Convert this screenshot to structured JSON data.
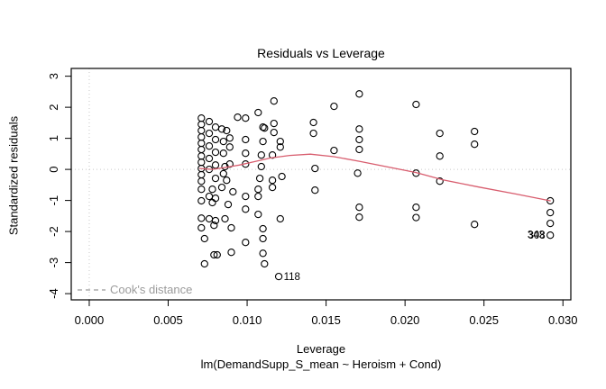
{
  "title": "Residuals vs Leverage",
  "subtitle": "lm(DemandSupp_S_mean ~ Heroism + Cond)",
  "legend": {
    "cooks_label": "Cook's distance"
  },
  "axes": {
    "x": {
      "label": "Leverage",
      "ticks": [
        0,
        0.005,
        0.01,
        0.015,
        0.02,
        0.025,
        0.03
      ],
      "tick_labels": [
        "0.000",
        "0.005",
        "0.010",
        "0.015",
        "0.020",
        "0.025",
        "0.030"
      ]
    },
    "y": {
      "label": "Standardized residuals",
      "ticks": [
        -4,
        -3,
        -2,
        -1,
        0,
        1,
        2,
        3
      ],
      "tick_labels": [
        "-4",
        "-3",
        "-2",
        "-1",
        "0",
        "1",
        "2",
        "3"
      ]
    }
  },
  "colors": {
    "point_stroke": "#000000",
    "smooth_line": "#d85d6e",
    "reference_dotted": "#c8c8c8",
    "cooks_gray": "#9b9b9b",
    "box": "#000000",
    "text": "#000000"
  },
  "chart_data": {
    "type": "scatter",
    "title": "Residuals vs Leverage",
    "xlabel": "Leverage",
    "ylabel": "Standardized residuals",
    "x_range": [
      -0.00114,
      0.0305
    ],
    "y_range": [
      -4.2,
      3.25
    ],
    "reference_lines": {
      "vertical_x": 0,
      "horizontal_y": 0
    },
    "points": [
      [
        0.0071,
        1.65
      ],
      [
        0.0071,
        1.45
      ],
      [
        0.0071,
        1.25
      ],
      [
        0.0071,
        1.04
      ],
      [
        0.0071,
        0.84
      ],
      [
        0.0071,
        0.64
      ],
      [
        0.0071,
        0.43
      ],
      [
        0.0071,
        0.23
      ],
      [
        0.0071,
        0.03
      ],
      [
        0.0071,
        -0.17
      ],
      [
        0.0071,
        -0.38
      ],
      [
        0.0071,
        -0.64
      ],
      [
        0.0071,
        -1.01
      ],
      [
        0.0071,
        -1.57
      ],
      [
        0.0071,
        -1.88
      ],
      [
        0.0073,
        -2.23
      ],
      [
        0.0073,
        -3.04
      ],
      [
        0.0076,
        1.54
      ],
      [
        0.0076,
        1.16
      ],
      [
        0.0076,
        0.75
      ],
      [
        0.0076,
        0.35
      ],
      [
        0.0076,
        0.0
      ],
      [
        0.0076,
        -0.87
      ],
      [
        0.0076,
        -1.59
      ],
      [
        0.0078,
        -0.64
      ],
      [
        0.0078,
        -1.07
      ],
      [
        0.0079,
        -1.8
      ],
      [
        0.0079,
        -2.75
      ],
      [
        0.0081,
        -2.75
      ],
      [
        0.008,
        1.36
      ],
      [
        0.008,
        0.96
      ],
      [
        0.008,
        0.55
      ],
      [
        0.008,
        0.14
      ],
      [
        0.008,
        -0.29
      ],
      [
        0.008,
        -0.93
      ],
      [
        0.008,
        -1.65
      ],
      [
        0.0084,
        1.3
      ],
      [
        0.0085,
        0.9
      ],
      [
        0.0085,
        0.52
      ],
      [
        0.0086,
        0.09
      ],
      [
        0.0085,
        -0.14
      ],
      [
        0.0084,
        -0.58
      ],
      [
        0.0086,
        -1.59
      ],
      [
        0.0087,
        1.25
      ],
      [
        0.0089,
        1.01
      ],
      [
        0.0089,
        0.72
      ],
      [
        0.0089,
        0.17
      ],
      [
        0.0087,
        -0.35
      ],
      [
        0.0091,
        -0.72
      ],
      [
        0.0088,
        -1.13
      ],
      [
        0.009,
        -1.88
      ],
      [
        0.009,
        -2.67
      ],
      [
        0.0094,
        1.68
      ],
      [
        0.0099,
        1.65
      ],
      [
        0.0099,
        0.96
      ],
      [
        0.0099,
        0.52
      ],
      [
        0.0099,
        0.17
      ],
      [
        0.0099,
        -0.87
      ],
      [
        0.0099,
        -1.28
      ],
      [
        0.0099,
        -2.35
      ],
      [
        0.0107,
        1.83
      ],
      [
        0.011,
        1.36
      ],
      [
        0.0111,
        1.33
      ],
      [
        0.011,
        0.9
      ],
      [
        0.0109,
        0.46
      ],
      [
        0.0109,
        0.09
      ],
      [
        0.0108,
        -0.29
      ],
      [
        0.0107,
        -0.64
      ],
      [
        0.0107,
        -0.87
      ],
      [
        0.0107,
        -1.45
      ],
      [
        0.011,
        -1.91
      ],
      [
        0.011,
        -2.23
      ],
      [
        0.011,
        -2.7
      ],
      [
        0.0111,
        -3.04
      ],
      [
        0.0117,
        2.2
      ],
      [
        0.0117,
        1.48
      ],
      [
        0.0117,
        1.19
      ],
      [
        0.0121,
        0.9
      ],
      [
        0.0121,
        0.72
      ],
      [
        0.0116,
        0.46
      ],
      [
        0.0122,
        -0.23
      ],
      [
        0.0116,
        -0.35
      ],
      [
        0.0116,
        -0.58
      ],
      [
        0.0121,
        -1.59
      ],
      [
        0.012,
        -3.45
      ],
      [
        0.0142,
        1.51
      ],
      [
        0.0142,
        1.16
      ],
      [
        0.0155,
        2.03
      ],
      [
        0.0155,
        0.61
      ],
      [
        0.0143,
        0.03
      ],
      [
        0.0143,
        -0.67
      ],
      [
        0.0171,
        2.43
      ],
      [
        0.0171,
        1.3
      ],
      [
        0.0171,
        0.96
      ],
      [
        0.0171,
        0.64
      ],
      [
        0.017,
        -0.12
      ],
      [
        0.0171,
        -1.22
      ],
      [
        0.0171,
        -1.54
      ],
      [
        0.0207,
        2.09
      ],
      [
        0.0207,
        -0.12
      ],
      [
        0.0207,
        -1.22
      ],
      [
        0.0207,
        -1.55
      ],
      [
        0.0222,
        1.16
      ],
      [
        0.0222,
        0.43
      ],
      [
        0.0222,
        -0.38
      ],
      [
        0.0244,
        1.22
      ],
      [
        0.0244,
        0.81
      ],
      [
        0.0244,
        -1.77
      ],
      [
        0.0292,
        -1.01
      ],
      [
        0.0292,
        -1.39
      ],
      [
        0.0292,
        -1.74
      ],
      [
        0.0292,
        -2.12
      ]
    ],
    "smooth_line": [
      [
        0.007,
        0.03
      ],
      [
        0.0078,
        0.0
      ],
      [
        0.0086,
        0.06
      ],
      [
        0.0095,
        0.14
      ],
      [
        0.0104,
        0.24
      ],
      [
        0.0115,
        0.37
      ],
      [
        0.0127,
        0.45
      ],
      [
        0.014,
        0.49
      ],
      [
        0.0155,
        0.41
      ],
      [
        0.0171,
        0.26
      ],
      [
        0.0189,
        0.08
      ],
      [
        0.0207,
        -0.1
      ],
      [
        0.0224,
        -0.34
      ],
      [
        0.0247,
        -0.57
      ],
      [
        0.027,
        -0.79
      ],
      [
        0.0292,
        -1.01
      ]
    ],
    "labeled_points": [
      {
        "label": "118",
        "x": 0.012,
        "y": -3.45,
        "side": "right"
      },
      {
        "label": "343",
        "x": 0.0292,
        "y": -2.12,
        "side": "left"
      },
      {
        "label": "308",
        "x": 0.0292,
        "y": -2.12,
        "side": "left"
      }
    ]
  }
}
